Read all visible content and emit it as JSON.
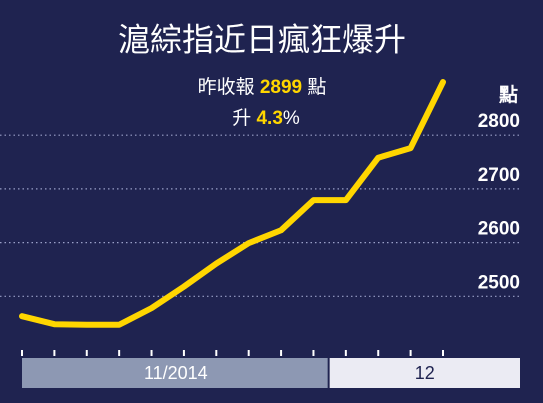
{
  "chart_data": {
    "type": "line",
    "title": "滬綜指近日瘋狂爆升",
    "annotation": {
      "line1": [
        "昨收報",
        "2899",
        "點"
      ],
      "line2": [
        "升",
        "4.3",
        "%"
      ]
    },
    "y_axis_label": "點",
    "categories": [
      "11/2014",
      null,
      null,
      null,
      null,
      null,
      null,
      null,
      null,
      null,
      "12",
      null,
      null,
      null
    ],
    "series": [
      {
        "name": null,
        "color": "#ffd600",
        "values": [
          2463,
          2448,
          2447,
          2447,
          2478,
          2518,
          2561,
          2599,
          2623,
          2679,
          2679,
          2758,
          2776,
          2899
        ]
      }
    ],
    "ylim": [
      2400,
      2940
    ],
    "yticks": [
      2500,
      2600,
      2700,
      2800
    ],
    "grid": true,
    "band_colors": [
      "#8d98b3",
      "#ebebf3"
    ],
    "band_text_colors": [
      "#ffffff",
      "#1f2350"
    ]
  }
}
